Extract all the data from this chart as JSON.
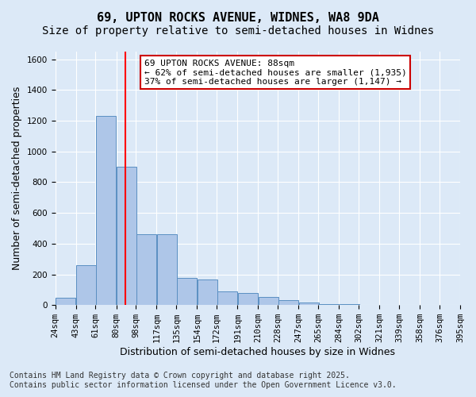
{
  "title_line1": "69, UPTON ROCKS AVENUE, WIDNES, WA8 9DA",
  "title_line2": "Size of property relative to semi-detached houses in Widnes",
  "xlabel": "Distribution of semi-detached houses by size in Widnes",
  "ylabel": "Number of semi-detached properties",
  "bins": [
    24,
    43,
    61,
    80,
    98,
    117,
    135,
    154,
    172,
    191,
    210,
    228,
    247,
    265,
    284,
    302,
    321,
    339,
    358,
    376,
    395
  ],
  "bin_labels": [
    "24sqm",
    "43sqm",
    "61sqm",
    "80sqm",
    "98sqm",
    "117sqm",
    "135sqm",
    "154sqm",
    "172sqm",
    "191sqm",
    "210sqm",
    "228sqm",
    "247sqm",
    "265sqm",
    "284sqm",
    "302sqm",
    "321sqm",
    "339sqm",
    "358sqm",
    "376sqm",
    "395sqm"
  ],
  "values": [
    50,
    260,
    1230,
    900,
    460,
    460,
    175,
    165,
    90,
    80,
    55,
    30,
    15,
    8,
    4,
    2,
    1,
    1,
    0,
    0
  ],
  "bar_color": "#aec6e8",
  "bar_edge_color": "#5a8fc2",
  "red_line_x": 88,
  "annotation_title": "69 UPTON ROCKS AVENUE: 88sqm",
  "annotation_line2": "← 62% of semi-detached houses are smaller (1,935)",
  "annotation_line3": "37% of semi-detached houses are larger (1,147) →",
  "annotation_box_color": "#ffffff",
  "annotation_box_edge": "#cc0000",
  "ylim": [
    0,
    1650
  ],
  "yticks": [
    0,
    200,
    400,
    600,
    800,
    1000,
    1200,
    1400,
    1600
  ],
  "footer_line1": "Contains HM Land Registry data © Crown copyright and database right 2025.",
  "footer_line2": "Contains public sector information licensed under the Open Government Licence v3.0.",
  "background_color": "#dce9f7",
  "plot_background": "#dce9f7",
  "grid_color": "#ffffff",
  "title_fontsize": 11,
  "subtitle_fontsize": 10,
  "axis_label_fontsize": 9,
  "tick_fontsize": 7.5,
  "footer_fontsize": 7,
  "annotation_fontsize": 8
}
